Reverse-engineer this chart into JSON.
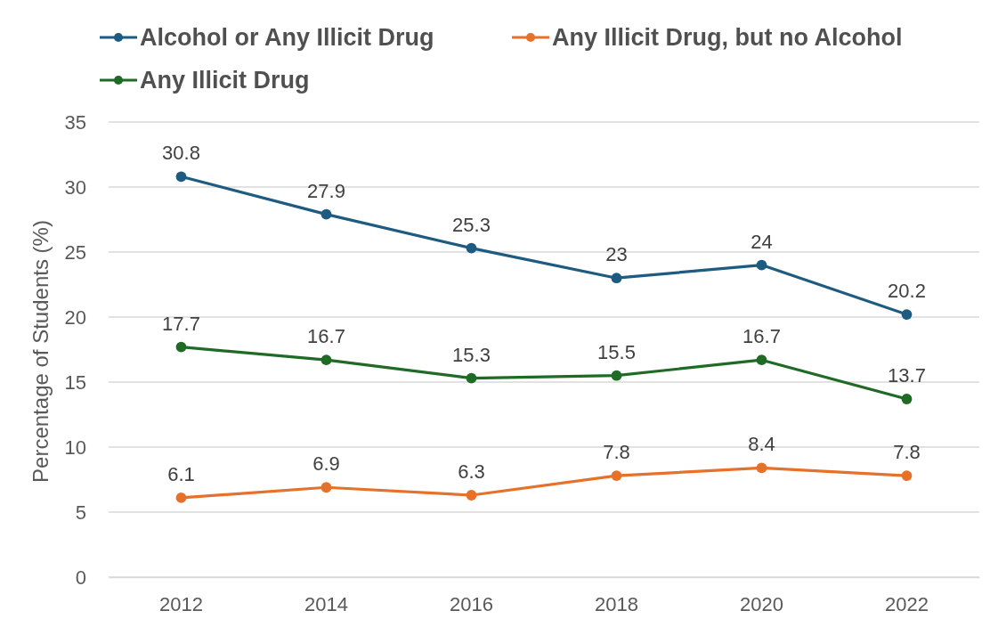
{
  "chart_data": {
    "type": "line",
    "ylabel": "Percentage of Students (%)",
    "categories": [
      "2012",
      "2014",
      "2016",
      "2018",
      "2020",
      "2022"
    ],
    "ylim": [
      0,
      35
    ],
    "yticks": [
      0,
      5,
      10,
      15,
      20,
      25,
      30,
      35
    ],
    "grid": "y",
    "legend": "top",
    "marker": "circle",
    "data_labels": true,
    "series": [
      {
        "name": "Alcohol or Any Illicit Drug",
        "color": "#1d5b80",
        "values": [
          30.8,
          27.9,
          25.3,
          23,
          24,
          20.2
        ]
      },
      {
        "name": "Any Illicit Drug, but no Alcohol",
        "color": "#e5712b",
        "values": [
          6.1,
          6.9,
          6.3,
          7.8,
          8.4,
          7.8
        ]
      },
      {
        "name": "Any Illicit Drug",
        "color": "#1f6b26",
        "values": [
          17.7,
          16.7,
          15.3,
          15.5,
          16.7,
          13.7
        ]
      }
    ]
  }
}
